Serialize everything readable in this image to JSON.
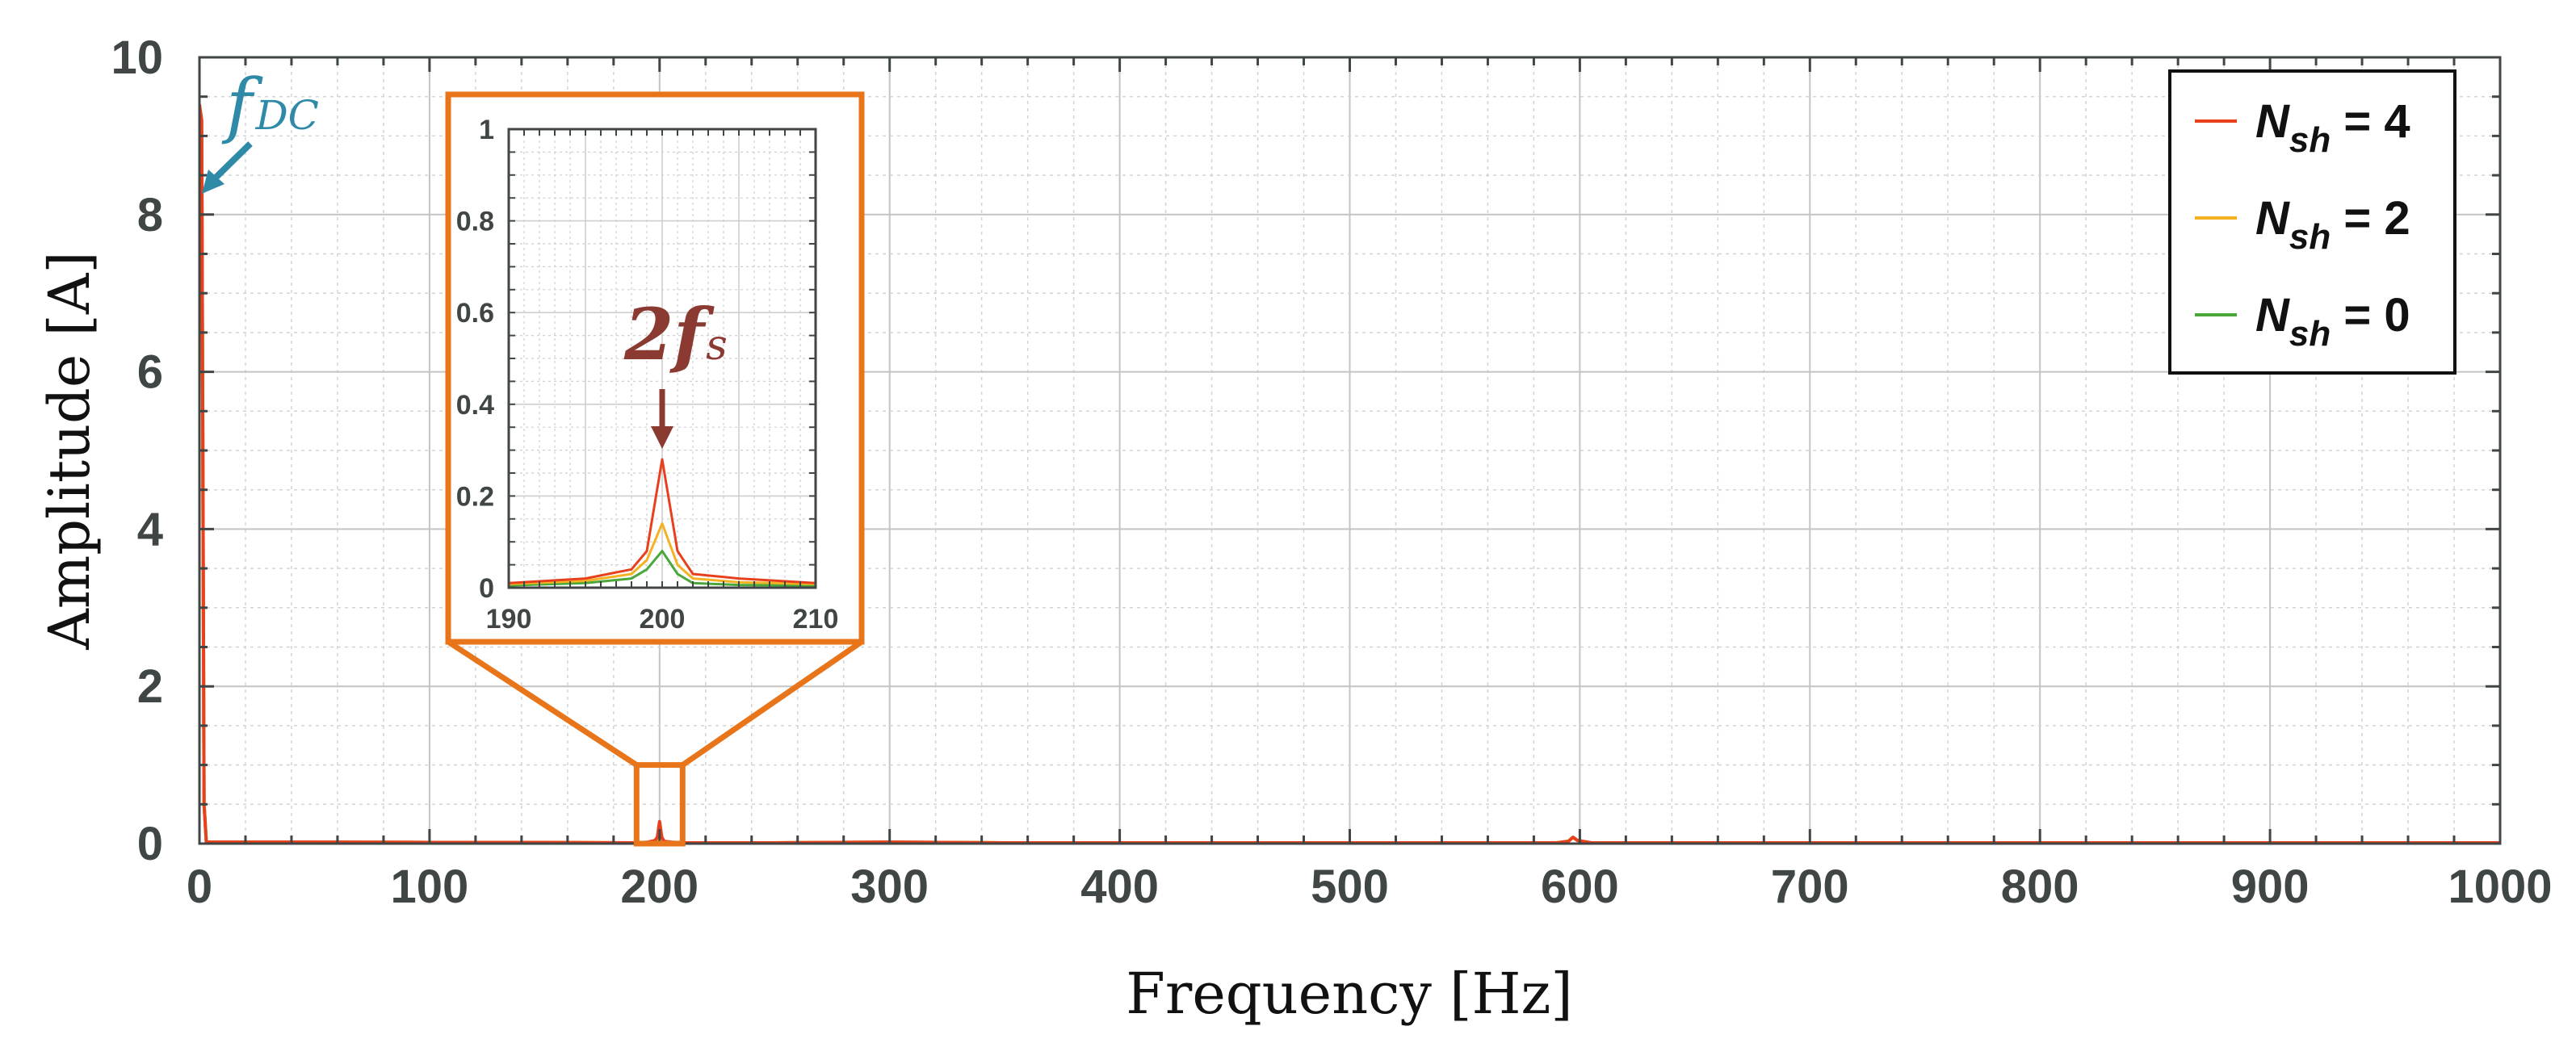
{
  "chart_data": {
    "type": "line",
    "title": "",
    "xlabel": "Frequency [Hz]",
    "ylabel": "Amplitude [A]",
    "xlim": [
      0,
      1000
    ],
    "ylim": [
      0,
      10
    ],
    "xticks": [
      "0",
      "100",
      "200",
      "300",
      "400",
      "500",
      "600",
      "700",
      "800",
      "900",
      "1000"
    ],
    "yticks": [
      "0",
      "2",
      "4",
      "6",
      "8",
      "10"
    ],
    "grid": true,
    "legend_position": "top-right",
    "legend": [
      {
        "prefix": "N",
        "sub": "sh",
        "suffix": " = 4",
        "color": "#e8401c"
      },
      {
        "prefix": "N",
        "sub": "sh",
        "suffix": " = 2",
        "color": "#f4b223"
      },
      {
        "prefix": "N",
        "sub": "sh",
        "suffix": " = 0",
        "color": "#4aa83a"
      }
    ],
    "series": [
      {
        "name": "Nsh = 4",
        "color": "#e8401c",
        "x": [
          0,
          1,
          2,
          3,
          50,
          100,
          150,
          190,
          195,
          198,
          199,
          200,
          201,
          202,
          205,
          210,
          250,
          300,
          350,
          400,
          500,
          590,
          595,
          597,
          599,
          605,
          700,
          800,
          900,
          1000
        ],
        "y": [
          9.4,
          9.2,
          0.5,
          0.02,
          0.02,
          0.015,
          0.015,
          0.01,
          0.02,
          0.04,
          0.08,
          0.28,
          0.08,
          0.03,
          0.02,
          0.01,
          0.01,
          0.02,
          0.01,
          0.01,
          0.01,
          0.01,
          0.03,
          0.08,
          0.04,
          0.01,
          0.01,
          0.01,
          0.01,
          0.01
        ]
      },
      {
        "name": "Nsh = 2",
        "color": "#f4b223",
        "x": [
          0,
          1,
          2,
          3,
          50,
          100,
          150,
          190,
          195,
          198,
          199,
          200,
          201,
          202,
          205,
          210,
          250,
          300,
          350,
          400,
          500,
          590,
          595,
          597,
          599,
          605,
          700,
          800,
          900,
          1000
        ],
        "y": [
          9.2,
          9.0,
          0.5,
          0.02,
          0.02,
          0.015,
          0.015,
          0.008,
          0.015,
          0.03,
          0.06,
          0.14,
          0.05,
          0.02,
          0.012,
          0.008,
          0.01,
          0.02,
          0.01,
          0.01,
          0.01,
          0.01,
          0.03,
          0.08,
          0.04,
          0.01,
          0.01,
          0.01,
          0.01,
          0.01
        ]
      },
      {
        "name": "Nsh = 0",
        "color": "#4aa83a",
        "x": [
          0,
          1,
          2,
          3,
          50,
          100,
          150,
          190,
          195,
          198,
          199,
          200,
          201,
          202,
          205,
          210,
          250,
          300,
          350,
          400,
          500,
          590,
          595,
          597,
          599,
          605,
          700,
          800,
          900,
          1000
        ],
        "y": [
          9.0,
          8.8,
          0.5,
          0.02,
          0.02,
          0.015,
          0.015,
          0.005,
          0.01,
          0.02,
          0.04,
          0.08,
          0.03,
          0.01,
          0.006,
          0.005,
          0.01,
          0.02,
          0.01,
          0.01,
          0.01,
          0.01,
          0.03,
          0.08,
          0.04,
          0.01,
          0.01,
          0.01,
          0.01,
          0.01
        ]
      }
    ],
    "inset": {
      "xlim": [
        190,
        210
      ],
      "ylim": [
        0,
        1
      ],
      "xticks": [
        "190",
        "200",
        "210"
      ],
      "yticks": [
        "0",
        "0.2",
        "0.4",
        "0.6",
        "0.8",
        "1"
      ],
      "zoom_region_x": [
        190,
        210
      ],
      "zoom_region_y": [
        0,
        1
      ]
    },
    "annotations": [
      {
        "base": "f",
        "sub": "DC",
        "color": "#2f8aa8",
        "target_x": 0,
        "target_y": 8.2
      },
      {
        "base": "2f",
        "sub": "s",
        "color": "#8b3a32",
        "target_x": 200,
        "target_y": 0.3
      }
    ]
  }
}
